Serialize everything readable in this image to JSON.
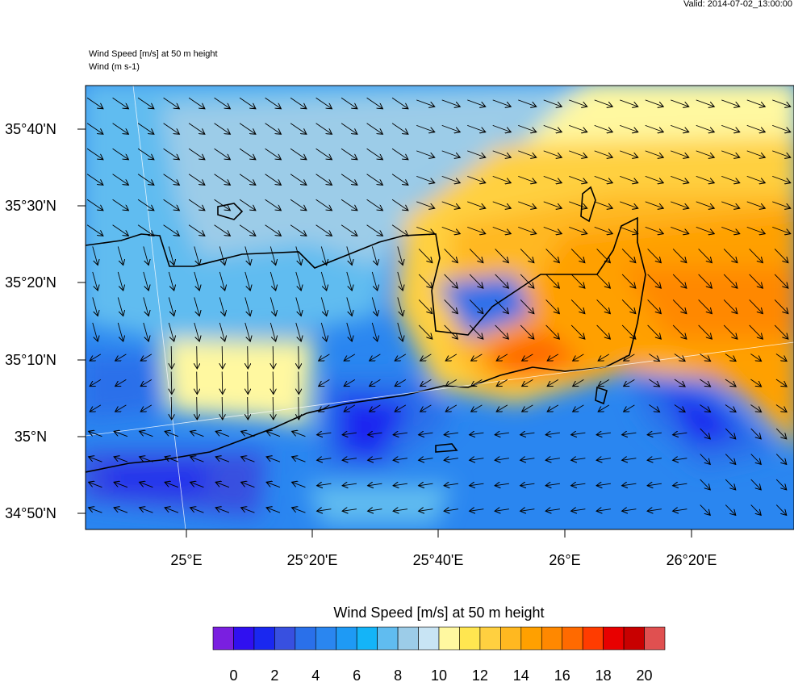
{
  "valid": "Valid: 2014-07-02_13:00:00",
  "header": {
    "line1": "Wind Speed [m/s] at 50 m height",
    "line2": "Wind   (m s-1)"
  },
  "map": {
    "lat_labels": [
      "35°40'N",
      "35°30'N",
      "35°20'N",
      "35°10'N",
      "35°N",
      "34°50'N"
    ],
    "lon_labels": [
      "25°E",
      "25°20'E",
      "25°40'E",
      "26°E",
      "26°20'E"
    ]
  },
  "colorbar": {
    "title": "Wind Speed [m/s] at 50 m height",
    "colors": [
      "#7a1fe0",
      "#3010f0",
      "#1a28f0",
      "#3850e0",
      "#2a70ea",
      "#2a86f0",
      "#1e9af5",
      "#14b4f8",
      "#60bcf0",
      "#9ccce8",
      "#c8e4f4",
      "#fff8a0",
      "#ffe650",
      "#ffd040",
      "#ffb820",
      "#ffa000",
      "#ff8800",
      "#ff6a00",
      "#ff3c00",
      "#e80000",
      "#c80000",
      "#e05050"
    ],
    "tick_labels": [
      "0",
      "2",
      "4",
      "6",
      "8",
      "10",
      "12",
      "14",
      "16",
      "18",
      "20"
    ]
  }
}
